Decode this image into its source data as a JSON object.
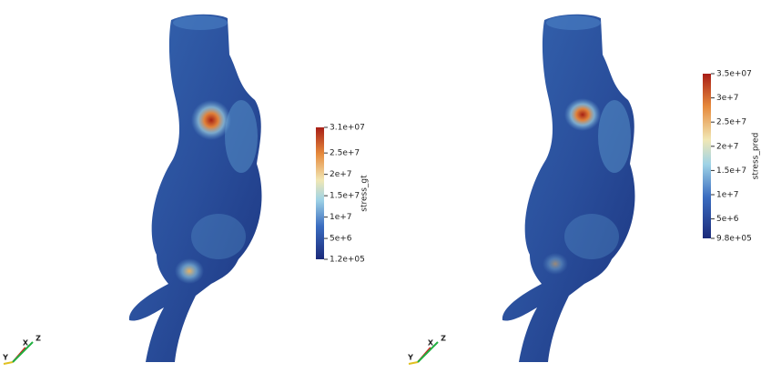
{
  "panels": [
    {
      "colorbar": {
        "title": "stress_gt",
        "range": [
          120000,
          31000000
        ],
        "ticks": [
          {
            "value": 120000,
            "label": "1.2e+05"
          },
          {
            "value": 5000000,
            "label": "5e+6"
          },
          {
            "value": 10000000,
            "label": "1e+7"
          },
          {
            "value": 15000000,
            "label": "1.5e+7"
          },
          {
            "value": 20000000,
            "label": "2e+7"
          },
          {
            "value": 25000000,
            "label": "2.5e+7"
          },
          {
            "value": 31000000,
            "label": "3.1e+07"
          }
        ]
      },
      "axes": [
        "X",
        "Y",
        "Z"
      ]
    },
    {
      "colorbar": {
        "title": "stress_pred",
        "range": [
          980000,
          35000000
        ],
        "ticks": [
          {
            "value": 980000,
            "label": "9.8e+05"
          },
          {
            "value": 5000000,
            "label": "5e+6"
          },
          {
            "value": 10000000,
            "label": "1e+7"
          },
          {
            "value": 15000000,
            "label": "1.5e+7"
          },
          {
            "value": 20000000,
            "label": "2e+7"
          },
          {
            "value": 25000000,
            "label": "2.5e+7"
          },
          {
            "value": 30000000,
            "label": "3e+7"
          },
          {
            "value": 35000000,
            "label": "3.5e+07"
          }
        ]
      },
      "axes": [
        "X",
        "Y",
        "Z"
      ]
    }
  ]
}
